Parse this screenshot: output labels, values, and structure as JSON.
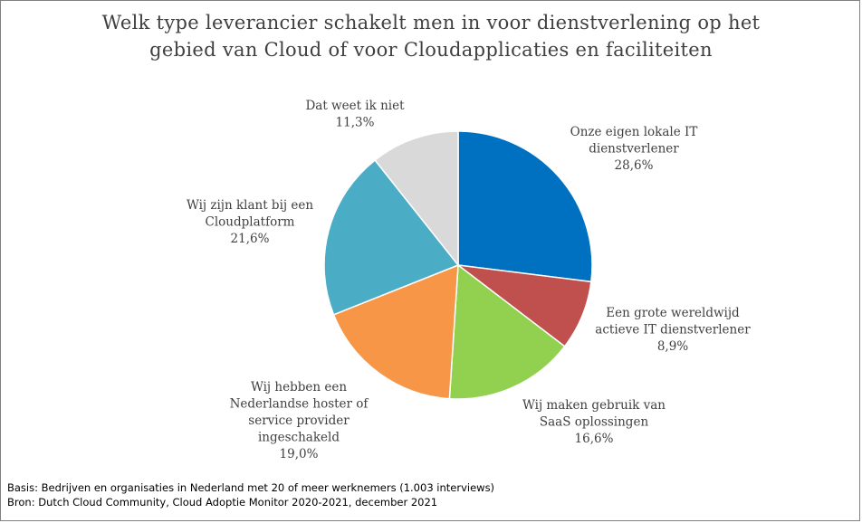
{
  "chart_data": {
    "type": "pie",
    "title_lines": [
      "Welk type leverancier schakelt men in voor dienstverlening  op het",
      "gebied van Cloud of voor Cloudapplicaties  en faciliteiten"
    ],
    "slices": [
      {
        "label_lines": [
          "Onze eigen lokale IT",
          "dienstverlener"
        ],
        "value_label": "28,6%",
        "value": 28.6,
        "color": "#0070C0"
      },
      {
        "label_lines": [
          "Een grote wereldwijd",
          "actieve IT dienstverlener"
        ],
        "value_label": "8,9%",
        "value": 8.9,
        "color": "#C0504D"
      },
      {
        "label_lines": [
          "Wij maken gebruik van",
          "SaaS oplossingen"
        ],
        "value_label": "16,6%",
        "value": 16.6,
        "color": "#92D050"
      },
      {
        "label_lines": [
          "Wij hebben een",
          "Nederlandse hoster of",
          "service provider",
          "ingeschakeld"
        ],
        "value_label": "19,0%",
        "value": 19.0,
        "color": "#F79646"
      },
      {
        "label_lines": [
          "Wij zijn klant bij een",
          "Cloudplatform"
        ],
        "value_label": "21,6%",
        "value": 21.6,
        "color": "#4BACC6"
      },
      {
        "label_lines": [
          "Dat weet ik niet"
        ],
        "value_label": "11,3%",
        "value": 11.3,
        "color": "#D9D9D9"
      }
    ],
    "notes": [
      "Basis: Bedrijven en organisaties in Nederland met 20 of meer werknemers (1.003 interviews)",
      "Bron: Dutch Cloud Community, Cloud Adoptie Monitor 2020-2021, december 2021"
    ]
  }
}
